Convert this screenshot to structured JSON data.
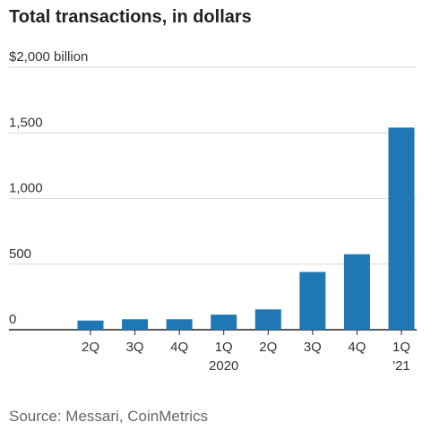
{
  "chart_data": {
    "type": "bar",
    "title": "Total transactions, in dollars",
    "unit_label": "$2,000 billion",
    "categories": [
      "2Q",
      "3Q",
      "4Q",
      "1Q",
      "2Q",
      "3Q",
      "4Q",
      "1Q"
    ],
    "category_years": [
      "",
      "",
      "",
      "2020",
      "",
      "",
      "",
      "'21"
    ],
    "values": [
      70,
      80,
      80,
      115,
      155,
      440,
      575,
      1540
    ],
    "ylim": [
      0,
      2000
    ],
    "yticks": [
      0,
      500,
      1000,
      1500,
      2000
    ],
    "ytick_labels": [
      "0",
      "500",
      "1,000",
      "1,500",
      "$2,000 billion"
    ],
    "grid": true,
    "bar_color": "#1f77b4",
    "source": "Source: Messari, CoinMetrics"
  }
}
